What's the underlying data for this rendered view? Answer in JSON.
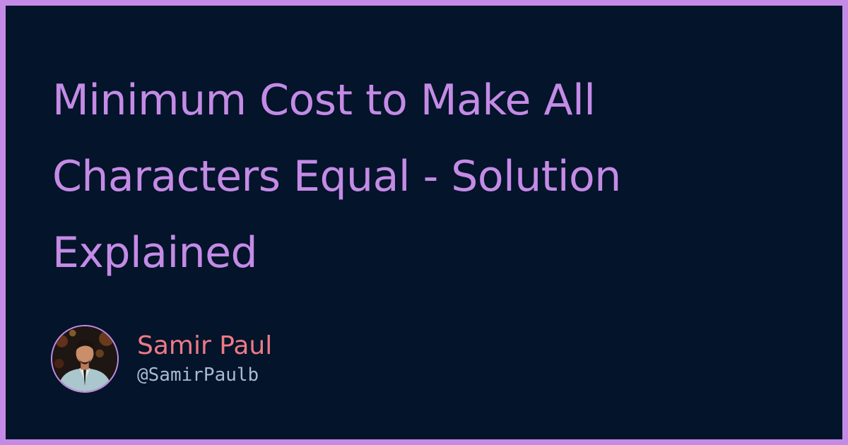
{
  "title": "Minimum Cost to Make All Characters Equal - Solution Explained",
  "author": {
    "name": "Samir Paul",
    "handle": "@SamirPaulb"
  },
  "colors": {
    "frame": "#c48be6",
    "background": "#04142a",
    "title": "#c48be6",
    "author_name": "#ef7a86",
    "author_handle": "#a8bbd2"
  }
}
